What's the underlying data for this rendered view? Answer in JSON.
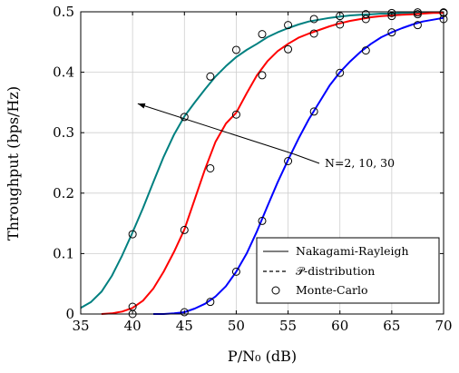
{
  "chart_data": {
    "type": "line",
    "xlabel": "P/N₀ (dB)",
    "ylabel": "Throughput (bps/Hz)",
    "xlim": [
      35,
      70
    ],
    "ylim": [
      0,
      0.5
    ],
    "xticks": [
      "35",
      "40",
      "45",
      "50",
      "55",
      "60",
      "65",
      "70"
    ],
    "yticks": [
      "0",
      "0.1",
      "0.2",
      "0.3",
      "0.4",
      "0.5"
    ],
    "grid": true,
    "legend_position": "bottom-right",
    "legend": [
      "Nakagami-Rayleigh",
      "𝒫-distribution",
      "Monte-Carlo"
    ],
    "annotation": {
      "text": "N=2, 10, 30",
      "arrow_from": [
        55.5,
        0.265
      ],
      "arrow_to": [
        40.5,
        0.348
      ]
    },
    "series": [
      {
        "color": "#008080",
        "x": [
          35,
          36,
          37,
          38,
          39,
          40,
          41,
          42,
          43,
          44,
          45,
          46,
          47,
          48,
          49,
          50,
          51,
          52,
          53,
          54,
          55,
          56,
          57,
          58,
          59,
          60,
          61,
          62,
          63,
          64,
          65,
          66,
          67,
          68,
          69,
          70
        ],
        "nakagami_rayleigh": [
          0.01,
          0.02,
          0.037,
          0.063,
          0.097,
          0.135,
          0.175,
          0.218,
          0.26,
          0.297,
          0.327,
          0.35,
          0.372,
          0.393,
          0.41,
          0.425,
          0.437,
          0.447,
          0.458,
          0.466,
          0.473,
          0.479,
          0.484,
          0.487,
          0.49,
          0.492,
          0.494,
          0.495,
          0.496,
          0.497,
          0.497,
          0.498,
          0.498,
          0.499,
          0.499,
          0.499
        ],
        "p_distribution": [
          0.01,
          0.02,
          0.037,
          0.063,
          0.097,
          0.135,
          0.175,
          0.218,
          0.26,
          0.297,
          0.327,
          0.35,
          0.372,
          0.393,
          0.41,
          0.425,
          0.437,
          0.447,
          0.458,
          0.466,
          0.473,
          0.479,
          0.484,
          0.487,
          0.49,
          0.492,
          0.494,
          0.495,
          0.496,
          0.497,
          0.497,
          0.498,
          0.498,
          0.499,
          0.499,
          0.499
        ],
        "monte_carlo": [
          [
            40,
            0.132
          ],
          [
            45,
            0.326
          ],
          [
            47.5,
            0.393
          ],
          [
            50,
            0.437
          ],
          [
            52.5,
            0.463
          ],
          [
            55,
            0.478
          ],
          [
            57.5,
            0.488
          ],
          [
            60,
            0.493
          ],
          [
            62.5,
            0.496
          ],
          [
            65,
            0.498
          ],
          [
            67.5,
            0.499
          ],
          [
            70,
            0.499
          ]
        ]
      },
      {
        "color": "#ff0000",
        "x": [
          37,
          38,
          39,
          40,
          41,
          42,
          43,
          44,
          45,
          46,
          47,
          48,
          49,
          50,
          51,
          52,
          53,
          54,
          55,
          56,
          57,
          58,
          59,
          60,
          61,
          62,
          63,
          64,
          65,
          66,
          67,
          68,
          69,
          70
        ],
        "nakagami_rayleigh": [
          0.0,
          0.001,
          0.004,
          0.01,
          0.022,
          0.042,
          0.07,
          0.103,
          0.14,
          0.19,
          0.24,
          0.285,
          0.315,
          0.333,
          0.365,
          0.395,
          0.418,
          0.435,
          0.447,
          0.457,
          0.464,
          0.47,
          0.476,
          0.481,
          0.485,
          0.488,
          0.491,
          0.493,
          0.494,
          0.495,
          0.496,
          0.497,
          0.498,
          0.498
        ],
        "p_distribution": [
          0.0,
          0.001,
          0.004,
          0.01,
          0.022,
          0.042,
          0.07,
          0.103,
          0.14,
          0.19,
          0.24,
          0.285,
          0.315,
          0.333,
          0.365,
          0.395,
          0.418,
          0.435,
          0.447,
          0.457,
          0.464,
          0.47,
          0.476,
          0.481,
          0.485,
          0.488,
          0.491,
          0.493,
          0.494,
          0.495,
          0.496,
          0.497,
          0.498,
          0.498
        ],
        "monte_carlo": [
          [
            40,
            0.012
          ],
          [
            45,
            0.139
          ],
          [
            47.5,
            0.241
          ],
          [
            50,
            0.33
          ],
          [
            52.5,
            0.395
          ],
          [
            55,
            0.438
          ],
          [
            57.5,
            0.464
          ],
          [
            60,
            0.479
          ],
          [
            62.5,
            0.488
          ],
          [
            65,
            0.493
          ],
          [
            67.5,
            0.496
          ],
          [
            70,
            0.498
          ]
        ]
      },
      {
        "color": "#0000ff",
        "x": [
          42,
          43,
          44,
          45,
          46,
          47,
          48,
          49,
          50,
          51,
          52,
          53,
          54,
          55,
          56,
          57,
          58,
          59,
          60,
          61,
          62,
          63,
          64,
          65,
          66,
          67,
          68,
          69,
          70
        ],
        "nakagami_rayleigh": [
          0.0,
          0.0,
          0.001,
          0.003,
          0.009,
          0.017,
          0.029,
          0.046,
          0.07,
          0.1,
          0.137,
          0.178,
          0.218,
          0.255,
          0.29,
          0.322,
          0.35,
          0.378,
          0.4,
          0.418,
          0.434,
          0.447,
          0.458,
          0.466,
          0.473,
          0.479,
          0.484,
          0.487,
          0.49
        ],
        "p_distribution": [
          0.0,
          0.0,
          0.001,
          0.003,
          0.009,
          0.017,
          0.029,
          0.046,
          0.07,
          0.1,
          0.137,
          0.178,
          0.218,
          0.255,
          0.29,
          0.322,
          0.35,
          0.378,
          0.4,
          0.418,
          0.434,
          0.447,
          0.458,
          0.466,
          0.473,
          0.479,
          0.484,
          0.487,
          0.49
        ],
        "monte_carlo": [
          [
            40,
            0.0
          ],
          [
            45,
            0.003
          ],
          [
            47.5,
            0.02
          ],
          [
            50,
            0.07
          ],
          [
            52.5,
            0.154
          ],
          [
            55,
            0.253
          ],
          [
            57.5,
            0.335
          ],
          [
            60,
            0.399
          ],
          [
            62.5,
            0.436
          ],
          [
            65,
            0.466
          ],
          [
            67.5,
            0.478
          ],
          [
            70,
            0.488
          ]
        ]
      }
    ]
  }
}
